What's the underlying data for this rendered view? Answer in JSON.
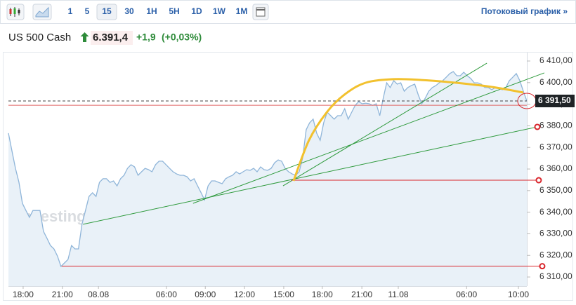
{
  "toolbar": {
    "intervals": [
      "1",
      "5",
      "15",
      "30",
      "1H",
      "5H",
      "1D",
      "1W",
      "1M"
    ],
    "active": 2,
    "link": "Потоковый график »"
  },
  "header": {
    "title": "US 500 Cash",
    "price": "6.391,4",
    "change": "+1,9",
    "change_pct": "(+0,03%)"
  },
  "chart_data": {
    "type": "area",
    "watermark": "Investing.com",
    "color": "#8fb5d9",
    "fill": "#e9f1f8",
    "x": [
      0,
      1,
      2,
      3,
      4,
      5,
      6,
      7,
      8,
      9,
      10,
      11,
      12,
      13,
      14,
      15,
      16,
      17,
      18,
      19,
      20,
      21,
      22,
      23,
      24,
      25,
      26,
      27,
      28,
      29,
      30,
      31,
      32,
      33,
      34,
      35,
      36,
      37,
      38,
      39,
      40,
      41,
      42,
      43,
      44,
      45,
      46,
      47,
      48,
      49,
      50,
      51,
      52,
      53,
      54,
      55,
      56,
      57,
      58,
      59,
      60,
      61,
      62,
      63,
      64,
      65,
      66,
      67,
      68,
      69,
      70,
      71,
      72,
      73,
      74,
      75,
      76,
      77,
      78,
      79,
      80,
      81,
      82,
      83,
      84,
      85,
      86,
      87,
      88,
      89,
      90,
      91,
      92,
      93,
      94,
      95,
      96,
      97,
      98,
      99,
      100,
      101,
      102,
      103,
      104,
      105,
      106,
      107,
      108,
      109,
      110,
      111,
      112,
      113,
      114,
      115,
      116,
      117,
      118,
      119,
      120,
      121,
      122,
      123,
      124,
      125,
      126,
      127,
      128,
      129,
      130,
      131,
      132,
      133,
      134,
      135,
      136,
      137,
      138,
      139,
      140,
      141,
      142,
      143,
      144,
      145,
      146,
      147,
      148
    ],
    "values": [
      6376.6,
      6368.4,
      6360.3,
      6353.8,
      6344.1,
      6340.8,
      6337.6,
      6340.8,
      6340.8,
      6340.8,
      6331.1,
      6327.9,
      6324.6,
      6323.0,
      6319.7,
      6314.9,
      6316.5,
      6318.1,
      6324.6,
      6323.0,
      6323.0,
      6334.4,
      6340.8,
      6347.3,
      6349.0,
      6347.3,
      6353.8,
      6355.5,
      6355.5,
      6353.8,
      6354.5,
      6352.2,
      6355.5,
      6357.1,
      6360.3,
      6362.0,
      6361.0,
      6357.1,
      6358.7,
      6360.3,
      6359.7,
      6358.7,
      6362.0,
      6363.6,
      6363.6,
      6362.0,
      6360.3,
      6358.7,
      6357.7,
      6357.1,
      6357.1,
      6356.4,
      6354.5,
      6355.5,
      6352.2,
      6349.0,
      6345.7,
      6352.2,
      6354.5,
      6354.5,
      6353.8,
      6353.2,
      6355.5,
      6356.4,
      6357.1,
      6358.7,
      6357.7,
      6358.7,
      6359.7,
      6359.4,
      6360.3,
      6358.7,
      6361.0,
      6359.7,
      6359.4,
      6360.3,
      6362.9,
      6364.2,
      6363.6,
      6360.3,
      6358.7,
      6357.7,
      6357.1,
      6358.7,
      6365.2,
      6378.2,
      6381.4,
      6383.1,
      6376.6,
      6373.3,
      6381.4,
      6386.3,
      6384.7,
      6383.1,
      6384.7,
      6384.7,
      6387.9,
      6383.1,
      6386.3,
      6389.5,
      6391.2,
      6390.2,
      6390.5,
      6390.2,
      6389.5,
      6390.2,
      6384.7,
      6392.8,
      6399.9,
      6397.7,
      6400.9,
      6399.3,
      6399.9,
      6396.0,
      6397.7,
      6398.6,
      6399.3,
      6394.4,
      6390.2,
      6392.8,
      6396.0,
      6397.7,
      6398.6,
      6399.9,
      6400.9,
      6402.5,
      6404.2,
      6405.1,
      6403.2,
      6403.2,
      6404.8,
      6403.2,
      6401.9,
      6399.9,
      6399.9,
      6399.3,
      6397.7,
      6397.7,
      6396.7,
      6397.7,
      6397.3,
      6396.7,
      6397.7,
      6400.9,
      6402.5,
      6404.2,
      6400.9,
      6396.0,
      6391.5
    ],
    "xlim": [
      0,
      148
    ],
    "xticks": [
      {
        "value": 4.2,
        "label": "18:00"
      },
      {
        "value": 15.4,
        "label": "21:00"
      },
      {
        "value": 25.7,
        "label": "08.08"
      },
      {
        "value": 45.1,
        "label": "06:00"
      },
      {
        "value": 56.2,
        "label": "09:00"
      },
      {
        "value": 67.4,
        "label": "12:00"
      },
      {
        "value": 78.6,
        "label": "15:00"
      },
      {
        "value": 89.6,
        "label": "18:00"
      },
      {
        "value": 100.9,
        "label": "21:00"
      },
      {
        "value": 111.3,
        "label": "11.08"
      },
      {
        "value": 130.8,
        "label": "06:00"
      },
      {
        "value": 145.6,
        "label": "10:00"
      }
    ],
    "ylim": [
      6305.8,
      6413.9
    ],
    "yticks": [
      {
        "value": 6310,
        "label": "6 310,00"
      },
      {
        "value": 6320,
        "label": "6 320,00"
      },
      {
        "value": 6330,
        "label": "6 330,00"
      },
      {
        "value": 6340,
        "label": "6 340,00"
      },
      {
        "value": 6350,
        "label": "6 350,00"
      },
      {
        "value": 6360,
        "label": "6 360,00"
      },
      {
        "value": 6370,
        "label": "6 370,00"
      },
      {
        "value": 6380,
        "label": "6 380,00"
      },
      {
        "value": 6390,
        "label": "6 390,00"
      },
      {
        "value": 6400,
        "label": "6 400,00"
      },
      {
        "value": 6410,
        "label": "6 410,00"
      }
    ],
    "grid": false,
    "last_price": {
      "value": 6391.5,
      "label": "6 391,50"
    },
    "reference_line": {
      "value": 6389.5,
      "color": "#e06666"
    },
    "drawings": [
      {
        "kind": "line",
        "color": "#2e9a3c",
        "end_marker": true,
        "x": [
          21.3,
          151.0
        ],
        "y": [
          6334.4,
          6379.5
        ]
      },
      {
        "kind": "line",
        "color": "#2e9a3c",
        "end_marker": false,
        "x": [
          52.7,
          153.0
        ],
        "y": [
          6344.1,
          6404.5
        ]
      },
      {
        "kind": "line",
        "color": "#2e9a3c",
        "end_marker": false,
        "x": [
          78.4,
          136.6
        ],
        "y": [
          6352.2,
          6409.0
        ]
      },
      {
        "kind": "line",
        "color": "#d9262c",
        "end_marker": true,
        "x": [
          15.2,
          152.4
        ],
        "y": [
          6315,
          6315
        ]
      },
      {
        "kind": "line",
        "color": "#d9262c",
        "end_marker": true,
        "x": [
          80.8,
          151.4
        ],
        "y": [
          6354.8,
          6354.8
        ]
      },
      {
        "kind": "curve",
        "color": "#f2c12e",
        "end_marker": false,
        "x": [
          81.4,
          85.8,
          90.9,
          95.9,
          101.9,
          109.9,
          117.9,
          128.0,
          138.0,
          147.0
        ],
        "y": [
          6354.5,
          6373.3,
          6386.3,
          6394.4,
          6399.9,
          6401.6,
          6401.2,
          6399.9,
          6398.0,
          6395.4
        ]
      }
    ]
  }
}
